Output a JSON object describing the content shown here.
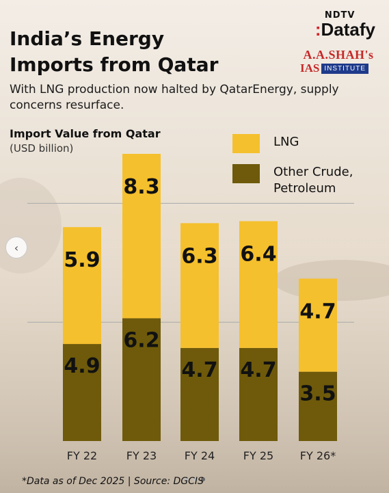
{
  "header": {
    "title_line1": "India’s Energy",
    "title_line2": "Imports from Qatar",
    "subtitle": "With LNG production now halted by QatarEnergy, supply concerns resurface."
  },
  "branding": {
    "ndtv": "NDTV",
    "datafy": "Datafy",
    "institute_top": "A.A.SHAH's",
    "institute_ias": "IAS",
    "institute_sub": "INSTITUTE"
  },
  "colors": {
    "lng": "#f5c02d",
    "crude": "#6e5a0a",
    "gridline": "#a8a8a8"
  },
  "chart_data": {
    "type": "stacked-bar",
    "ylabel": "Import Value from Qatar",
    "yunit": "(USD billion)",
    "categories": [
      "FY 22",
      "FY 23",
      "FY 24",
      "FY 25",
      "FY 26*"
    ],
    "series": [
      {
        "name": "Other Crude, Petroleum",
        "values": [
          4.9,
          6.2,
          4.7,
          4.7,
          3.5
        ]
      },
      {
        "name": "LNG",
        "values": [
          5.9,
          8.3,
          6.3,
          6.4,
          4.7
        ]
      }
    ],
    "legend": [
      "LNG",
      "Other Crude, Petroleum"
    ],
    "ylim": [
      0,
      14.5
    ],
    "grid": true
  },
  "footer": {
    "source": "*Data as of Dec 2025 | Source: DGCIS"
  },
  "icons": {
    "prev": "‹"
  }
}
